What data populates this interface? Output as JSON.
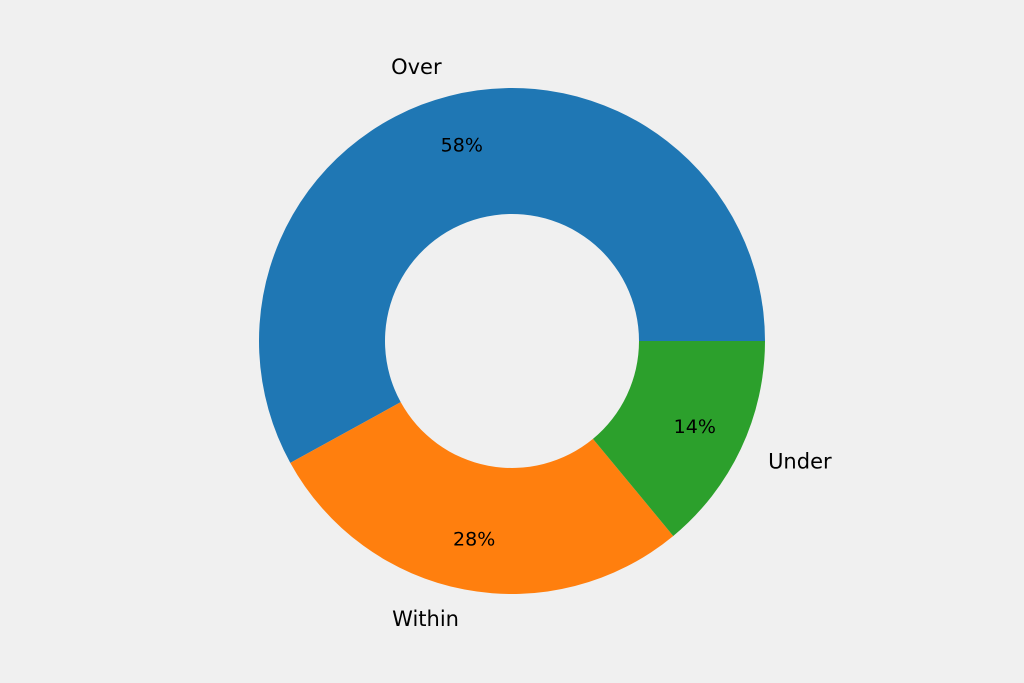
{
  "chart_data": {
    "type": "pie",
    "donut": true,
    "start_angle_deg": 0,
    "direction": "counterclockwise",
    "categories": [
      "Over",
      "Within",
      "Under"
    ],
    "values": [
      58,
      28,
      14
    ],
    "percent_labels": [
      "58%",
      "28%",
      "14%"
    ],
    "colors": [
      "#1f77b4",
      "#ff7f0e",
      "#2ca02c"
    ],
    "legend": "none",
    "grid": false
  },
  "colors": {
    "background": "#f0f0f0"
  }
}
